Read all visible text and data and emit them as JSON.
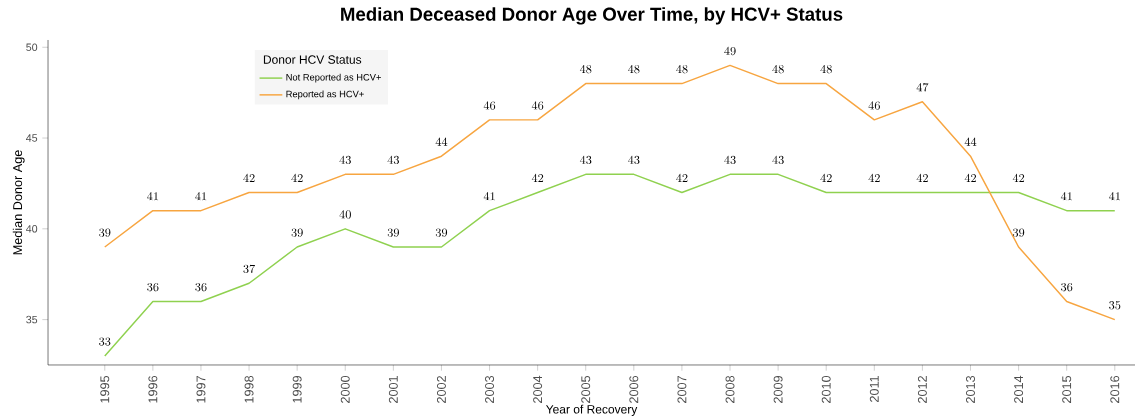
{
  "chart_data": {
    "type": "line",
    "title": "Median Deceased Donor Age Over Time, by HCV+ Status",
    "xlabel": "Year of Recovery",
    "ylabel": "Median Donor Age",
    "legend_title": "Donor HCV Status",
    "categories": [
      "1995",
      "1996",
      "1997",
      "1998",
      "1999",
      "2000",
      "2001",
      "2002",
      "2003",
      "2004",
      "2005",
      "2006",
      "2007",
      "2008",
      "2009",
      "2010",
      "2011",
      "2012",
      "2013",
      "2014",
      "2015",
      "2016"
    ],
    "series": [
      {
        "name": "Not Reported as HCV+",
        "color": "#8fd14f",
        "values": [
          33,
          36,
          36,
          37,
          39,
          40,
          39,
          39,
          41,
          42,
          43,
          43,
          42,
          43,
          43,
          42,
          42,
          42,
          42,
          42,
          41,
          41
        ]
      },
      {
        "name": "Reported as HCV+",
        "color": "#f7a540",
        "values": [
          39,
          41,
          41,
          42,
          42,
          43,
          43,
          44,
          46,
          46,
          48,
          48,
          48,
          49,
          48,
          48,
          46,
          47,
          44,
          39,
          36,
          35
        ]
      }
    ],
    "ylim": [
      32.5,
      50.4
    ],
    "yticks": [
      35,
      40,
      45,
      50
    ],
    "grid": false,
    "legend": "top left",
    "marker": "none",
    "line_style": "solid",
    "data_labels": true
  }
}
